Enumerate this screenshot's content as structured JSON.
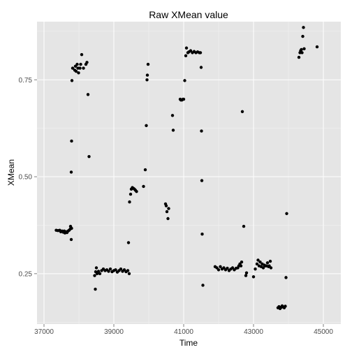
{
  "chart_data": {
    "type": "scatter",
    "title": "Raw XMean value",
    "xlabel": "Time",
    "ylabel": "XMean",
    "xlim": [
      36800,
      45500
    ],
    "ylim": [
      0.12,
      0.9
    ],
    "x_ticks": [
      37000,
      39000,
      41000,
      43000,
      45000
    ],
    "y_ticks": [
      0.25,
      0.5,
      0.75
    ],
    "x_tick_labels": [
      "37000",
      "39000",
      "41000",
      "43000",
      "45000"
    ],
    "y_tick_labels": [
      "0.25",
      "0.50",
      "0.75"
    ],
    "grid": true,
    "colors": {
      "panel": "#e5e5e5",
      "grid": "#ffffff",
      "point": "#000000"
    },
    "series": [
      {
        "name": "XMean",
        "points": [
          [
            37350,
            0.362
          ],
          [
            37400,
            0.361
          ],
          [
            37450,
            0.362
          ],
          [
            37480,
            0.358
          ],
          [
            37520,
            0.36
          ],
          [
            37550,
            0.357
          ],
          [
            37580,
            0.36
          ],
          [
            37600,
            0.355
          ],
          [
            37630,
            0.358
          ],
          [
            37660,
            0.356
          ],
          [
            37690,
            0.36
          ],
          [
            37720,
            0.362
          ],
          [
            37750,
            0.365
          ],
          [
            37760,
            0.372
          ],
          [
            37780,
            0.338
          ],
          [
            37790,
            0.367
          ],
          [
            37780,
            0.512
          ],
          [
            37790,
            0.592
          ],
          [
            37800,
            0.748
          ],
          [
            37820,
            0.78
          ],
          [
            37880,
            0.775
          ],
          [
            37900,
            0.785
          ],
          [
            37920,
            0.772
          ],
          [
            37950,
            0.79
          ],
          [
            37970,
            0.78
          ],
          [
            37990,
            0.768
          ],
          [
            38030,
            0.78
          ],
          [
            38050,
            0.79
          ],
          [
            38080,
            0.815
          ],
          [
            38130,
            0.78
          ],
          [
            38200,
            0.79
          ],
          [
            38230,
            0.795
          ],
          [
            38260,
            0.712
          ],
          [
            38290,
            0.552
          ],
          [
            38450,
            0.245
          ],
          [
            38470,
            0.21
          ],
          [
            38480,
            0.255
          ],
          [
            38500,
            0.265
          ],
          [
            38520,
            0.25
          ],
          [
            38560,
            0.256
          ],
          [
            38600,
            0.25
          ],
          [
            38650,
            0.258
          ],
          [
            38700,
            0.262
          ],
          [
            38750,
            0.258
          ],
          [
            38800,
            0.26
          ],
          [
            38850,
            0.256
          ],
          [
            38900,
            0.262
          ],
          [
            38950,
            0.255
          ],
          [
            39000,
            0.258
          ],
          [
            39050,
            0.26
          ],
          [
            39100,
            0.254
          ],
          [
            39150,
            0.258
          ],
          [
            39200,
            0.262
          ],
          [
            39250,
            0.256
          ],
          [
            39300,
            0.26
          ],
          [
            39350,
            0.255
          ],
          [
            39400,
            0.258
          ],
          [
            39440,
            0.25
          ],
          [
            39420,
            0.33
          ],
          [
            39450,
            0.435
          ],
          [
            39480,
            0.455
          ],
          [
            39500,
            0.468
          ],
          [
            39530,
            0.472
          ],
          [
            39560,
            0.47
          ],
          [
            39590,
            0.468
          ],
          [
            39620,
            0.465
          ],
          [
            39650,
            0.462
          ],
          [
            39850,
            0.475
          ],
          [
            39900,
            0.518
          ],
          [
            39930,
            0.632
          ],
          [
            39950,
            0.75
          ],
          [
            39960,
            0.762
          ],
          [
            39980,
            0.79
          ],
          [
            40480,
            0.43
          ],
          [
            40500,
            0.425
          ],
          [
            40520,
            0.41
          ],
          [
            40550,
            0.392
          ],
          [
            40570,
            0.418
          ],
          [
            40680,
            0.658
          ],
          [
            40700,
            0.62
          ],
          [
            40900,
            0.7
          ],
          [
            40920,
            0.698
          ],
          [
            40950,
            0.698
          ],
          [
            40980,
            0.7
          ],
          [
            41000,
            0.7
          ],
          [
            41030,
            0.748
          ],
          [
            41060,
            0.812
          ],
          [
            41080,
            0.832
          ],
          [
            41120,
            0.82
          ],
          [
            41150,
            0.822
          ],
          [
            41200,
            0.825
          ],
          [
            41250,
            0.82
          ],
          [
            41300,
            0.823
          ],
          [
            41350,
            0.82
          ],
          [
            41400,
            0.822
          ],
          [
            41450,
            0.82
          ],
          [
            41480,
            0.82
          ],
          [
            41500,
            0.782
          ],
          [
            41510,
            0.618
          ],
          [
            41520,
            0.49
          ],
          [
            41530,
            0.352
          ],
          [
            41550,
            0.22
          ],
          [
            41900,
            0.268
          ],
          [
            41950,
            0.265
          ],
          [
            42000,
            0.26
          ],
          [
            42050,
            0.268
          ],
          [
            42100,
            0.262
          ],
          [
            42150,
            0.265
          ],
          [
            42200,
            0.26
          ],
          [
            42250,
            0.264
          ],
          [
            42300,
            0.258
          ],
          [
            42350,
            0.262
          ],
          [
            42400,
            0.265
          ],
          [
            42450,
            0.26
          ],
          [
            42500,
            0.264
          ],
          [
            42550,
            0.265
          ],
          [
            42580,
            0.27
          ],
          [
            42610,
            0.275
          ],
          [
            42640,
            0.27
          ],
          [
            42660,
            0.28
          ],
          [
            42680,
            0.668
          ],
          [
            42720,
            0.372
          ],
          [
            42780,
            0.245
          ],
          [
            42800,
            0.252
          ],
          [
            43000,
            0.242
          ],
          [
            43050,
            0.262
          ],
          [
            43100,
            0.275
          ],
          [
            43130,
            0.285
          ],
          [
            43160,
            0.27
          ],
          [
            43190,
            0.28
          ],
          [
            43220,
            0.268
          ],
          [
            43250,
            0.275
          ],
          [
            43280,
            0.265
          ],
          [
            43310,
            0.272
          ],
          [
            43340,
            0.27
          ],
          [
            43370,
            0.27
          ],
          [
            43400,
            0.278
          ],
          [
            43430,
            0.268
          ],
          [
            43450,
            0.27
          ],
          [
            43480,
            0.282
          ],
          [
            43500,
            0.265
          ],
          [
            43700,
            0.162
          ],
          [
            43730,
            0.165
          ],
          [
            43760,
            0.16
          ],
          [
            43790,
            0.163
          ],
          [
            43820,
            0.167
          ],
          [
            43850,
            0.164
          ],
          [
            43880,
            0.162
          ],
          [
            43910,
            0.166
          ],
          [
            43930,
            0.24
          ],
          [
            43950,
            0.405
          ],
          [
            44300,
            0.808
          ],
          [
            44330,
            0.82
          ],
          [
            44350,
            0.825
          ],
          [
            44370,
            0.828
          ],
          [
            44390,
            0.82
          ],
          [
            44410,
            0.862
          ],
          [
            44430,
            0.885
          ],
          [
            44450,
            0.83
          ],
          [
            44820,
            0.835
          ]
        ]
      }
    ]
  }
}
